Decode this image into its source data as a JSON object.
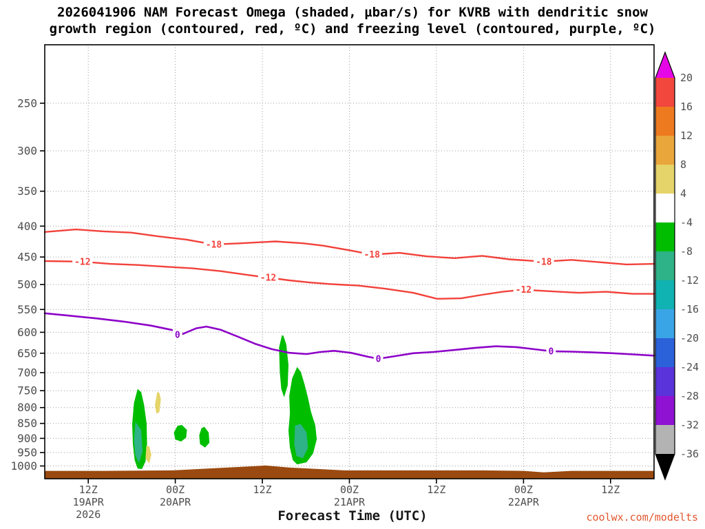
{
  "header": {
    "title_line1": "2026041906 NAM Forecast Omega (shaded, µbar/s) for KVRB with dendritic snow",
    "title_line2": "growth region (contoured, red, ºC) and freezing level (contoured, purple, ºC)"
  },
  "footer": {
    "xlabel": "Forecast Time (UTC)",
    "watermark": "coolwx.com/modelts"
  },
  "style": {
    "grid_color": "#999999",
    "tick_color": "#4d4d4d",
    "frame_color": "#000000",
    "title_color": "#000000",
    "watermark_color": "#e2572e"
  },
  "chart_data": {
    "type": "heatmap",
    "subtype": "time-height cross-section: shaded omega with temperature contours over log-pressure axis",
    "title": "2026041906 NAM Forecast Omega (shaded, µbar/s) for KVRB with dendritic snow growth region (contoured, red, ºC) and freezing level (contoured, purple, ºC)",
    "xlabel": "Forecast Time (UTC)",
    "grid": true,
    "x_axis": {
      "range_hours": [
        0,
        84
      ],
      "ticks": [
        {
          "hour": 6,
          "label": "12Z",
          "date": "19APR",
          "year": "2026"
        },
        {
          "hour": 18,
          "label": "00Z",
          "date": "20APR"
        },
        {
          "hour": 30,
          "label": "12Z"
        },
        {
          "hour": 42,
          "label": "00Z",
          "date": "21APR"
        },
        {
          "hour": 54,
          "label": "12Z"
        },
        {
          "hour": 66,
          "label": "00Z",
          "date": "22APR"
        },
        {
          "hour": 78,
          "label": "12Z"
        }
      ]
    },
    "y_axis": {
      "scale": "log",
      "range": [
        200,
        1050
      ],
      "ticks": [
        250,
        300,
        350,
        400,
        450,
        500,
        550,
        600,
        650,
        700,
        750,
        800,
        850,
        900,
        950,
        1000
      ]
    },
    "colorbar": {
      "units": "µbar/s",
      "position": "right",
      "tick_labels": [
        20,
        16,
        12,
        8,
        4,
        -4,
        -8,
        -12,
        -16,
        -20,
        -24,
        -28,
        -32,
        -36
      ],
      "arrow_top_color": "#e607e6",
      "arrow_bottom_color": "#000000",
      "bands": [
        {
          "range": [
            20,
            16
          ],
          "color": "#f2473d"
        },
        {
          "range": [
            16,
            12
          ],
          "color": "#ee7a1f"
        },
        {
          "range": [
            12,
            8
          ],
          "color": "#e9a63b"
        },
        {
          "range": [
            8,
            4
          ],
          "color": "#e5d469"
        },
        {
          "range": [
            4,
            -4
          ],
          "color": "#ffffff"
        },
        {
          "range": [
            -4,
            -8
          ],
          "color": "#00bd00"
        },
        {
          "range": [
            -8,
            -12
          ],
          "color": "#2eb287"
        },
        {
          "range": [
            -12,
            -16
          ],
          "color": "#10b2b2"
        },
        {
          "range": [
            -16,
            -20
          ],
          "color": "#3aa5e6"
        },
        {
          "range": [
            -20,
            -24
          ],
          "color": "#2b62da"
        },
        {
          "range": [
            -24,
            -28
          ],
          "color": "#5b33da"
        },
        {
          "range": [
            -28,
            -32
          ],
          "color": "#8f12d2"
        },
        {
          "range": [
            -32,
            -36
          ],
          "color": "#b3b3b3"
        }
      ]
    },
    "contours": [
      {
        "id": "dendritic-minus18",
        "label": "-18",
        "value": -18,
        "units": "ºC",
        "color": "#f2413a",
        "width": 2.4,
        "points": [
          [
            0,
            409
          ],
          [
            4.3,
            405
          ],
          [
            8.1,
            408
          ],
          [
            11.9,
            410
          ],
          [
            15.7,
            416
          ],
          [
            19.5,
            421
          ],
          [
            23.3,
            429
          ],
          [
            27,
            427
          ],
          [
            31.8,
            424
          ],
          [
            35.6,
            427
          ],
          [
            38.4,
            431
          ],
          [
            42.2,
            439
          ],
          [
            45.1,
            446
          ],
          [
            48.9,
            443
          ],
          [
            52.7,
            449
          ],
          [
            56.5,
            452
          ],
          [
            60.3,
            448
          ],
          [
            64.1,
            454
          ],
          [
            68.8,
            458
          ],
          [
            72.6,
            455
          ],
          [
            76.4,
            459
          ],
          [
            80.2,
            463
          ],
          [
            84,
            462
          ]
        ],
        "label_positions": [
          [
            23.3,
            429
          ],
          [
            45.1,
            446
          ],
          [
            68.8,
            458
          ]
        ]
      },
      {
        "id": "dendritic-minus12",
        "label": "-12",
        "value": -12,
        "units": "ºC",
        "color": "#f2413a",
        "width": 2.4,
        "points": [
          [
            0,
            457
          ],
          [
            5.2,
            458
          ],
          [
            9,
            462
          ],
          [
            12.8,
            464
          ],
          [
            16.6,
            467
          ],
          [
            20.4,
            470
          ],
          [
            24.2,
            475
          ],
          [
            28,
            482
          ],
          [
            30.8,
            487
          ],
          [
            33.7,
            492
          ],
          [
            36.5,
            496
          ],
          [
            39.4,
            499
          ],
          [
            43.2,
            502
          ],
          [
            47,
            508
          ],
          [
            50.8,
            516
          ],
          [
            54.1,
            528
          ],
          [
            57.4,
            527
          ],
          [
            60.3,
            520
          ],
          [
            63.1,
            514
          ],
          [
            66,
            510
          ],
          [
            69.8,
            513
          ],
          [
            73.6,
            516
          ],
          [
            77.4,
            514
          ],
          [
            81.1,
            518
          ],
          [
            84,
            518
          ]
        ],
        "label_positions": [
          [
            5.2,
            458
          ],
          [
            30.8,
            487
          ],
          [
            66,
            510
          ]
        ]
      },
      {
        "id": "freezing-level-0",
        "label": "0",
        "value": 0,
        "units": "ºC",
        "color": "#8c00c8",
        "width": 2.6,
        "points": [
          [
            0,
            558
          ],
          [
            3.3,
            563
          ],
          [
            7.1,
            569
          ],
          [
            10.9,
            576
          ],
          [
            14.7,
            585
          ],
          [
            17.6,
            595
          ],
          [
            19,
            604
          ],
          [
            20.9,
            591
          ],
          [
            22.3,
            587
          ],
          [
            24.2,
            594
          ],
          [
            26.6,
            610
          ],
          [
            29,
            627
          ],
          [
            31.3,
            640
          ],
          [
            33.7,
            649
          ],
          [
            36.1,
            652
          ],
          [
            38,
            647
          ],
          [
            39.9,
            644
          ],
          [
            42.2,
            649
          ],
          [
            44.6,
            659
          ],
          [
            46,
            664
          ],
          [
            48.4,
            657
          ],
          [
            50.8,
            650
          ],
          [
            53.6,
            647
          ],
          [
            56.5,
            642
          ],
          [
            59.3,
            637
          ],
          [
            62.2,
            633
          ],
          [
            65,
            635
          ],
          [
            67.9,
            641
          ],
          [
            69.8,
            645
          ],
          [
            72.6,
            646
          ],
          [
            75.5,
            648
          ],
          [
            78.3,
            650
          ],
          [
            81.1,
            653
          ],
          [
            84,
            656
          ]
        ],
        "label_positions": [
          [
            18.3,
            606
          ],
          [
            46,
            664
          ],
          [
            69.8,
            645
          ]
        ]
      }
    ],
    "shaded": [
      {
        "id": "green-column-1",
        "field": "omega",
        "range": "-4 to -8",
        "color": "#00bd00",
        "points": [
          [
            12.8,
            745
          ],
          [
            12.3,
            786
          ],
          [
            12.05,
            851
          ],
          [
            12.15,
            920
          ],
          [
            12.4,
            978
          ],
          [
            12.8,
            1010
          ],
          [
            13.4,
            1012
          ],
          [
            13.9,
            983
          ],
          [
            14.1,
            920
          ],
          [
            14.05,
            851
          ],
          [
            13.7,
            792
          ],
          [
            13.3,
            754
          ]
        ]
      },
      {
        "id": "teal-core-1",
        "field": "omega",
        "range": "-8 to -12",
        "color": "#2eb287",
        "points": [
          [
            12.5,
            845
          ],
          [
            12.3,
            908
          ],
          [
            12.5,
            962
          ],
          [
            13,
            989
          ],
          [
            13.5,
            946
          ],
          [
            13.3,
            872
          ]
        ]
      },
      {
        "id": "yellow-sliver-upper",
        "field": "omega",
        "range": "4 to 8",
        "color": "#e5d469",
        "points": [
          [
            15.5,
            754
          ],
          [
            15.2,
            792
          ],
          [
            15.4,
            819
          ],
          [
            15.8,
            814
          ],
          [
            16,
            775
          ],
          [
            15.8,
            756
          ]
        ]
      },
      {
        "id": "yellow-sliver-lower",
        "field": "omega",
        "range": "4 to 8",
        "color": "#e5d469",
        "points": [
          [
            14,
            927
          ],
          [
            13.9,
            971
          ],
          [
            14.4,
            991
          ],
          [
            14.7,
            957
          ],
          [
            14.4,
            927
          ]
        ]
      },
      {
        "id": "green-spot-2",
        "field": "omega",
        "range": "-4 to -8",
        "color": "#00bd00",
        "points": [
          [
            18.3,
            858
          ],
          [
            17.8,
            880
          ],
          [
            18,
            904
          ],
          [
            18.8,
            911
          ],
          [
            19.5,
            897
          ],
          [
            19.6,
            871
          ],
          [
            18.9,
            855
          ]
        ]
      },
      {
        "id": "green-spot-3",
        "field": "omega",
        "range": "-4 to -8",
        "color": "#00bd00",
        "points": [
          [
            21.6,
            866
          ],
          [
            21.3,
            889
          ],
          [
            21.4,
            920
          ],
          [
            22.1,
            932
          ],
          [
            22.7,
            915
          ],
          [
            22.6,
            880
          ],
          [
            22,
            861
          ]
        ]
      },
      {
        "id": "green-column-4-upper",
        "field": "omega",
        "range": "-4 to -8",
        "color": "#00bd00",
        "points": [
          [
            32.7,
            607
          ],
          [
            32.3,
            636
          ],
          [
            32.4,
            698
          ],
          [
            32.6,
            745
          ],
          [
            33,
            769
          ],
          [
            33.5,
            735
          ],
          [
            33.6,
            680
          ],
          [
            33.3,
            628
          ],
          [
            32.9,
            608
          ]
        ]
      },
      {
        "id": "green-column-4-lower",
        "field": "omega",
        "range": "-4 to -8",
        "color": "#00bd00",
        "points": [
          [
            34.8,
            685
          ],
          [
            34.1,
            716
          ],
          [
            33.7,
            765
          ],
          [
            33.8,
            818
          ],
          [
            33.6,
            874
          ],
          [
            33.8,
            933
          ],
          [
            34.2,
            978
          ],
          [
            34.8,
            994
          ],
          [
            36.1,
            986
          ],
          [
            37,
            953
          ],
          [
            37.5,
            903
          ],
          [
            37.3,
            857
          ],
          [
            36.7,
            813
          ],
          [
            36.3,
            771
          ],
          [
            35.8,
            731
          ],
          [
            35.3,
            698
          ]
        ]
      },
      {
        "id": "teal-core-4",
        "field": "omega",
        "range": "-8 to -12",
        "color": "#2eb287",
        "points": [
          [
            34.5,
            857
          ],
          [
            34.4,
            920
          ],
          [
            34.7,
            963
          ],
          [
            35.6,
            971
          ],
          [
            36.3,
            933
          ],
          [
            36.1,
            880
          ],
          [
            35.3,
            852
          ]
        ]
      }
    ],
    "terrain": {
      "color": "#9a4a10",
      "base_pressure": 1050,
      "top_profile": [
        [
          0,
          1019
        ],
        [
          8.1,
          1019
        ],
        [
          17.6,
          1017
        ],
        [
          25.2,
          1006
        ],
        [
          29,
          1001
        ],
        [
          30.4,
          998
        ],
        [
          33.7,
          1006
        ],
        [
          41.3,
          1017
        ],
        [
          50.8,
          1017
        ],
        [
          60.3,
          1017
        ],
        [
          66,
          1019
        ],
        [
          68.8,
          1025
        ],
        [
          72.6,
          1019
        ],
        [
          84,
          1019
        ]
      ]
    }
  }
}
